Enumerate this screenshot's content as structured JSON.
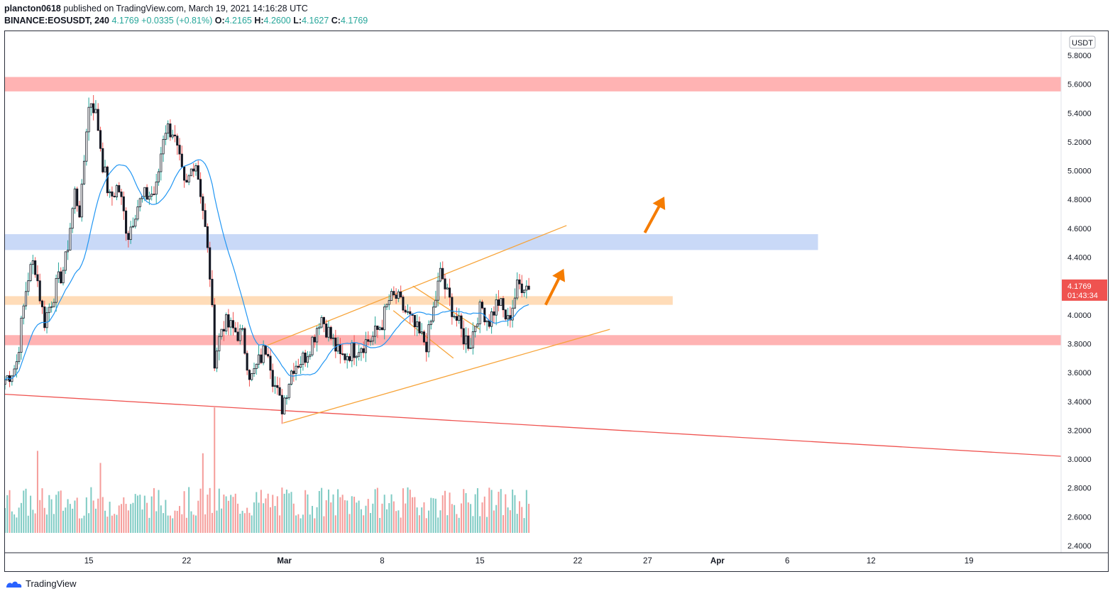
{
  "header": {
    "author": "plancton0618",
    "published": "published on TradingView.com, March 19, 2021 14:16:28 UTC",
    "symbol": "BINANCE:EOSUSDT, 240",
    "last": "4.1769",
    "change": "+0.0335 (+0.81%)",
    "o_label": "O:",
    "o_val": "4.2165",
    "h_label": "H:",
    "h_val": "4.2600",
    "l_label": "L:",
    "l_val": "4.1627",
    "c_label": "C:",
    "c_val": "4.1769"
  },
  "footer": {
    "brand": "TradingView"
  },
  "chart_data": {
    "type": "candlestick",
    "currency": "USDT",
    "ylim": [
      2.35,
      5.95
    ],
    "y_ticks": [
      "5.8000",
      "5.6000",
      "5.4000",
      "5.2000",
      "5.0000",
      "4.8000",
      "4.6000",
      "4.4000",
      "4.2000",
      "4.0000",
      "3.8000",
      "3.6000",
      "3.4000",
      "3.2000",
      "3.0000",
      "2.8000",
      "2.6000",
      "2.4000"
    ],
    "x_ticks": [
      {
        "label": "15",
        "day": 14
      },
      {
        "label": "22",
        "day": 21
      },
      {
        "label": "Mar",
        "day": 28
      },
      {
        "label": "8",
        "day": 35
      },
      {
        "label": "15",
        "day": 42
      },
      {
        "label": "22",
        "day": 49
      },
      {
        "label": "27",
        "day": 54
      },
      {
        "label": "Apr",
        "day": 59
      },
      {
        "label": "6",
        "day": 64
      },
      {
        "label": "12",
        "day": 70
      },
      {
        "label": "19",
        "day": 77
      }
    ],
    "x_range_days": [
      8,
      83.6
    ],
    "price_label": {
      "value": 4.1769,
      "text": "4.1769",
      "countdown": "01:43:34",
      "color": "#ef5350"
    },
    "zones": [
      {
        "from": 5.55,
        "to": 5.65,
        "x_end_day": 83.6,
        "color": "#ffb3b3"
      },
      {
        "from": 4.45,
        "to": 4.56,
        "x_end_day": 66.2,
        "color": "#c9d9f7"
      },
      {
        "from": 4.07,
        "to": 4.13,
        "x_end_day": 55.8,
        "color": "#ffdcb8"
      },
      {
        "from": 3.79,
        "to": 3.86,
        "x_end_day": 83.6,
        "color": "#ffb3b3"
      }
    ],
    "trend_lines": [
      {
        "points": [
          [
            8.0,
            3.45
          ],
          [
            83.6,
            3.02
          ]
        ],
        "color": "#ef5350"
      },
      {
        "points": [
          [
            27.9,
            3.25
          ],
          [
            51.3,
            3.9
          ]
        ],
        "color": "#f7a43a"
      },
      {
        "points": [
          [
            26.8,
            3.79
          ],
          [
            48.2,
            4.62
          ]
        ],
        "color": "#f7a43a"
      },
      {
        "points": [
          [
            35.8,
            4.03
          ],
          [
            40.1,
            3.7
          ]
        ],
        "color": "#f7a43a"
      },
      {
        "points": [
          [
            37.2,
            4.2
          ],
          [
            42.0,
            3.9
          ]
        ],
        "color": "#f7a43a"
      }
    ],
    "arrows": [
      {
        "from": [
          46.7,
          4.07
        ],
        "to": [
          48.0,
          4.32
        ],
        "color": "#f57c00"
      },
      {
        "from": [
          53.8,
          4.57
        ],
        "to": [
          55.2,
          4.82
        ],
        "color": "#f57c00"
      }
    ],
    "series": [
      {
        "name": "EOSUSDT",
        "type": "candles",
        "candles_per_day": 6,
        "anchors": [
          [
            8.0,
            3.55
          ],
          [
            8.8,
            3.65
          ],
          [
            9.6,
            4.25
          ],
          [
            10.1,
            4.38
          ],
          [
            10.8,
            3.95
          ],
          [
            11.5,
            4.15
          ],
          [
            12.3,
            4.35
          ],
          [
            13.0,
            4.85
          ],
          [
            13.4,
            4.7
          ],
          [
            13.9,
            5.4
          ],
          [
            14.2,
            5.5
          ],
          [
            14.6,
            5.35
          ],
          [
            15.0,
            5.05
          ],
          [
            15.5,
            4.8
          ],
          [
            16.1,
            4.9
          ],
          [
            16.8,
            4.55
          ],
          [
            17.4,
            4.75
          ],
          [
            18.0,
            4.82
          ],
          [
            18.8,
            4.85
          ],
          [
            19.4,
            5.3
          ],
          [
            20.0,
            5.28
          ],
          [
            20.5,
            5.05
          ],
          [
            20.9,
            4.85
          ],
          [
            21.6,
            5.1
          ],
          [
            22.1,
            4.8
          ],
          [
            22.7,
            4.25
          ],
          [
            23.0,
            3.7
          ],
          [
            23.6,
            3.95
          ],
          [
            24.3,
            3.9
          ],
          [
            25.0,
            3.85
          ],
          [
            25.6,
            3.55
          ],
          [
            26.3,
            3.7
          ],
          [
            26.8,
            3.8
          ],
          [
            27.2,
            3.55
          ],
          [
            27.8,
            3.35
          ],
          [
            28.6,
            3.65
          ],
          [
            29.4,
            3.7
          ],
          [
            30.1,
            3.85
          ],
          [
            30.6,
            4.0
          ],
          [
            31.3,
            3.85
          ],
          [
            32.0,
            3.7
          ],
          [
            32.8,
            3.75
          ],
          [
            33.6,
            3.8
          ],
          [
            34.4,
            3.85
          ],
          [
            35.0,
            3.95
          ],
          [
            35.5,
            4.1
          ],
          [
            36.0,
            4.12
          ],
          [
            36.8,
            4.0
          ],
          [
            37.7,
            3.85
          ],
          [
            38.2,
            3.8
          ],
          [
            38.8,
            4.1
          ],
          [
            39.2,
            4.3
          ],
          [
            39.6,
            4.15
          ],
          [
            40.2,
            4.0
          ],
          [
            40.8,
            3.85
          ],
          [
            41.3,
            3.8
          ],
          [
            41.8,
            4.0
          ],
          [
            42.2,
            4.05
          ],
          [
            42.6,
            3.95
          ],
          [
            43.3,
            4.1
          ],
          [
            44.0,
            3.95
          ],
          [
            44.7,
            4.2
          ],
          [
            45.2,
            4.22
          ],
          [
            45.5,
            4.18
          ]
        ],
        "last": 4.1769
      },
      {
        "name": "MA",
        "type": "line",
        "color": "#2196f3"
      }
    ],
    "volume": {
      "up_color": "#7fcbc4",
      "down_color": "#f59c9a",
      "spikes": [
        {
          "day": 10.3,
          "value": 3.4
        },
        {
          "day": 23.0,
          "value": 5.2
        },
        {
          "day": 22.1,
          "value": 3.3
        },
        {
          "day": 14.8,
          "value": 2.9
        }
      ]
    }
  }
}
